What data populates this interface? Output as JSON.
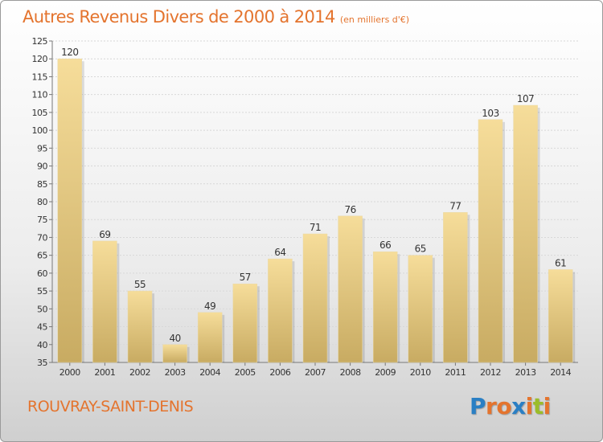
{
  "title": "Autres Revenus Divers de 2000 à 2014",
  "title_unit": "(en milliers d'€)",
  "commune": "ROUVRAY-SAINT-DENIS",
  "logo": {
    "text": "Proxiti",
    "letters": [
      "P",
      "r",
      "o",
      "x",
      "i",
      "t",
      "i"
    ],
    "colors": [
      "#2a7fc4",
      "#e4742e",
      "#e4742e",
      "#2a7fc4",
      "#e4742e",
      "#9bbd2a",
      "#e4742e"
    ]
  },
  "colors": {
    "accent": "#e4742e",
    "bar_top": "#f6dd9a",
    "bar_bottom": "#c8ab62"
  },
  "chart_data": {
    "type": "bar",
    "title": "Autres Revenus Divers de 2000 à 2014",
    "xlabel": "",
    "ylabel": "",
    "categories": [
      "2000",
      "2001",
      "2002",
      "2003",
      "2004",
      "2005",
      "2006",
      "2007",
      "2008",
      "2009",
      "2010",
      "2011",
      "2012",
      "2013",
      "2014"
    ],
    "values": [
      120,
      69,
      55,
      40,
      49,
      57,
      64,
      71,
      76,
      66,
      65,
      77,
      103,
      107,
      61
    ],
    "data_labels": [
      "120",
      "69",
      "55",
      "40",
      "49",
      "57",
      "64",
      "71",
      "76",
      "66",
      "65",
      "77",
      "103",
      "107",
      "61"
    ],
    "ylim": [
      35,
      125
    ],
    "yticks": [
      35,
      40,
      45,
      50,
      55,
      60,
      65,
      70,
      75,
      80,
      85,
      90,
      95,
      100,
      105,
      110,
      115,
      120,
      125
    ],
    "grid": true
  }
}
